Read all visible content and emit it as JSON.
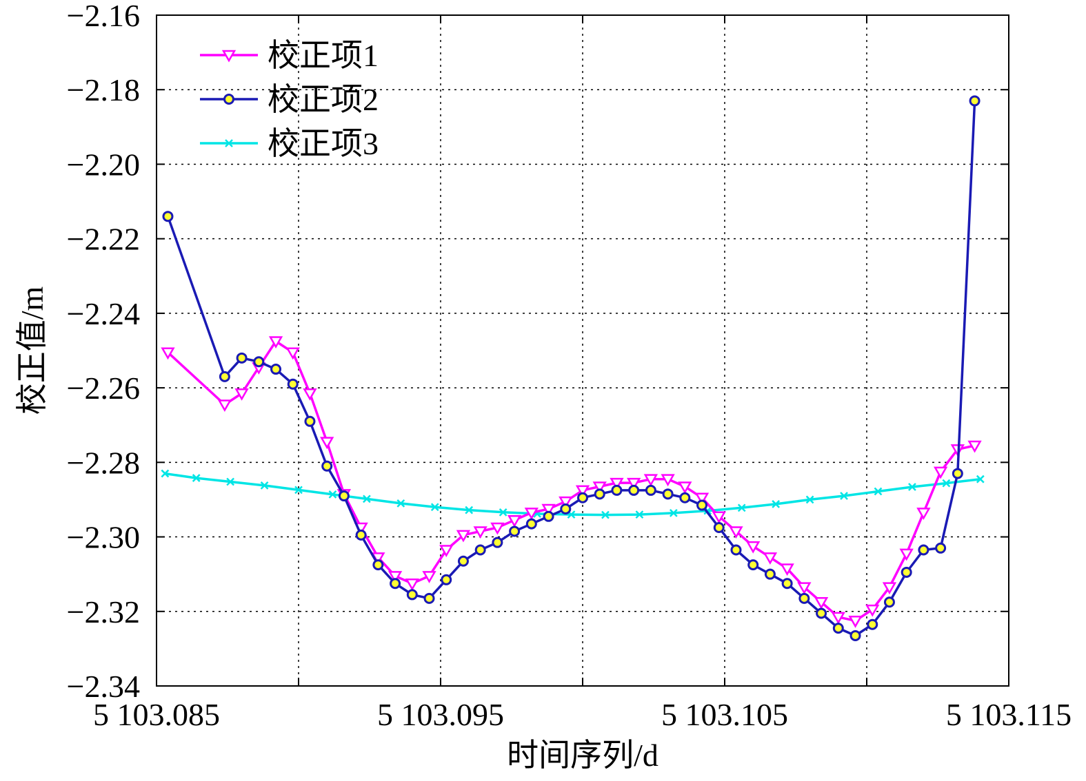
{
  "chart_data": {
    "type": "line",
    "xlabel": "时间序列/d",
    "ylabel": "校正值/m",
    "xlim": [
      5103.085,
      5103.115
    ],
    "ylim": [
      -2.34,
      -2.16
    ],
    "grid": true,
    "legend_position": "top-left",
    "x_ticks": [
      5103.085,
      5103.09,
      5103.095,
      5103.1,
      5103.105,
      5103.11,
      5103.115
    ],
    "x_tick_labels": [
      "5 103.085",
      "",
      "5 103.095",
      "",
      "5 103.105",
      "",
      "5 103.115"
    ],
    "y_ticks": [
      -2.16,
      -2.18,
      -2.2,
      -2.22,
      -2.24,
      -2.26,
      -2.28,
      -2.3,
      -2.32,
      -2.34
    ],
    "y_tick_labels": [
      "−2.16",
      "−2.18",
      "−2.20",
      "−2.22",
      "−2.24",
      "−2.26",
      "−2.28",
      "−2.30",
      "−2.32",
      "−2.34"
    ],
    "series": [
      {
        "name": "校正项1",
        "color": "#ff00ff",
        "marker": "triangle-down",
        "points": [
          [
            5103.0854,
            -2.2505
          ],
          [
            5103.0874,
            -2.2645
          ],
          [
            5103.088,
            -2.2615
          ],
          [
            5103.0886,
            -2.2545
          ],
          [
            5103.0892,
            -2.2475
          ],
          [
            5103.0898,
            -2.2505
          ],
          [
            5103.0904,
            -2.2615
          ],
          [
            5103.091,
            -2.2745
          ],
          [
            5103.0916,
            -2.2885
          ],
          [
            5103.0922,
            -2.2975
          ],
          [
            5103.0928,
            -2.3055
          ],
          [
            5103.0934,
            -2.3105
          ],
          [
            5103.094,
            -2.3125
          ],
          [
            5103.0946,
            -2.3105
          ],
          [
            5103.0952,
            -2.3035
          ],
          [
            5103.0958,
            -2.2995
          ],
          [
            5103.0964,
            -2.2985
          ],
          [
            5103.097,
            -2.2975
          ],
          [
            5103.0976,
            -2.2955
          ],
          [
            5103.0982,
            -2.2935
          ],
          [
            5103.0988,
            -2.2925
          ],
          [
            5103.0994,
            -2.2905
          ],
          [
            5103.1,
            -2.2875
          ],
          [
            5103.1006,
            -2.2865
          ],
          [
            5103.1012,
            -2.2855
          ],
          [
            5103.1018,
            -2.2855
          ],
          [
            5103.1024,
            -2.2845
          ],
          [
            5103.103,
            -2.2845
          ],
          [
            5103.1036,
            -2.2865
          ],
          [
            5103.1042,
            -2.2895
          ],
          [
            5103.1048,
            -2.2945
          ],
          [
            5103.1054,
            -2.2985
          ],
          [
            5103.106,
            -2.3025
          ],
          [
            5103.1066,
            -2.3055
          ],
          [
            5103.1072,
            -2.3085
          ],
          [
            5103.1078,
            -2.3135
          ],
          [
            5103.1084,
            -2.3175
          ],
          [
            5103.109,
            -2.3215
          ],
          [
            5103.1096,
            -2.3225
          ],
          [
            5103.1102,
            -2.3195
          ],
          [
            5103.1108,
            -2.3135
          ],
          [
            5103.1114,
            -2.3045
          ],
          [
            5103.112,
            -2.2935
          ],
          [
            5103.1126,
            -2.2825
          ],
          [
            5103.1132,
            -2.2765
          ],
          [
            5103.1138,
            -2.2755
          ]
        ]
      },
      {
        "name": "校正项2",
        "color": "#1a1ab4",
        "marker_fill": "#ffff33",
        "marker": "circle",
        "points": [
          [
            5103.0854,
            -2.214
          ],
          [
            5103.0874,
            -2.257
          ],
          [
            5103.088,
            -2.252
          ],
          [
            5103.0886,
            -2.253
          ],
          [
            5103.0892,
            -2.255
          ],
          [
            5103.0898,
            -2.259
          ],
          [
            5103.0904,
            -2.269
          ],
          [
            5103.091,
            -2.281
          ],
          [
            5103.0916,
            -2.289
          ],
          [
            5103.0922,
            -2.2995
          ],
          [
            5103.0928,
            -2.3075
          ],
          [
            5103.0934,
            -2.3125
          ],
          [
            5103.094,
            -2.3155
          ],
          [
            5103.0946,
            -2.3165
          ],
          [
            5103.0952,
            -2.3115
          ],
          [
            5103.0958,
            -2.3065
          ],
          [
            5103.0964,
            -2.3035
          ],
          [
            5103.097,
            -2.3015
          ],
          [
            5103.0976,
            -2.2985
          ],
          [
            5103.0982,
            -2.2965
          ],
          [
            5103.0988,
            -2.2945
          ],
          [
            5103.0994,
            -2.2925
          ],
          [
            5103.1,
            -2.2895
          ],
          [
            5103.1006,
            -2.2885
          ],
          [
            5103.1012,
            -2.2875
          ],
          [
            5103.1018,
            -2.2875
          ],
          [
            5103.1024,
            -2.2875
          ],
          [
            5103.103,
            -2.2885
          ],
          [
            5103.1036,
            -2.2895
          ],
          [
            5103.1042,
            -2.2915
          ],
          [
            5103.1048,
            -2.2975
          ],
          [
            5103.1054,
            -2.3035
          ],
          [
            5103.106,
            -2.3075
          ],
          [
            5103.1066,
            -2.31
          ],
          [
            5103.1072,
            -2.3125
          ],
          [
            5103.1078,
            -2.3165
          ],
          [
            5103.1084,
            -2.3205
          ],
          [
            5103.109,
            -2.3245
          ],
          [
            5103.1096,
            -2.3265
          ],
          [
            5103.1102,
            -2.3235
          ],
          [
            5103.1108,
            -2.3175
          ],
          [
            5103.1114,
            -2.3095
          ],
          [
            5103.112,
            -2.3035
          ],
          [
            5103.1126,
            -2.303
          ],
          [
            5103.1132,
            -2.283
          ],
          [
            5103.1138,
            -2.183
          ]
        ]
      },
      {
        "name": "校正项3",
        "color": "#00e5e5",
        "marker": "x",
        "points": [
          [
            5103.0853,
            -2.283
          ],
          [
            5103.0864,
            -2.2842
          ],
          [
            5103.0876,
            -2.2852
          ],
          [
            5103.0888,
            -2.2862
          ],
          [
            5103.09,
            -2.2874
          ],
          [
            5103.0912,
            -2.2886
          ],
          [
            5103.0924,
            -2.2898
          ],
          [
            5103.0936,
            -2.291
          ],
          [
            5103.0948,
            -2.292
          ],
          [
            5103.096,
            -2.2928
          ],
          [
            5103.0972,
            -2.2934
          ],
          [
            5103.0984,
            -2.2938
          ],
          [
            5103.0996,
            -2.294
          ],
          [
            5103.1008,
            -2.2941
          ],
          [
            5103.102,
            -2.294
          ],
          [
            5103.1032,
            -2.2936
          ],
          [
            5103.1044,
            -2.293
          ],
          [
            5103.1056,
            -2.2922
          ],
          [
            5103.1068,
            -2.2912
          ],
          [
            5103.108,
            -2.29
          ],
          [
            5103.1092,
            -2.289
          ],
          [
            5103.1104,
            -2.2878
          ],
          [
            5103.1116,
            -2.2866
          ],
          [
            5103.1128,
            -2.2856
          ],
          [
            5103.114,
            -2.2845
          ]
        ]
      }
    ]
  }
}
